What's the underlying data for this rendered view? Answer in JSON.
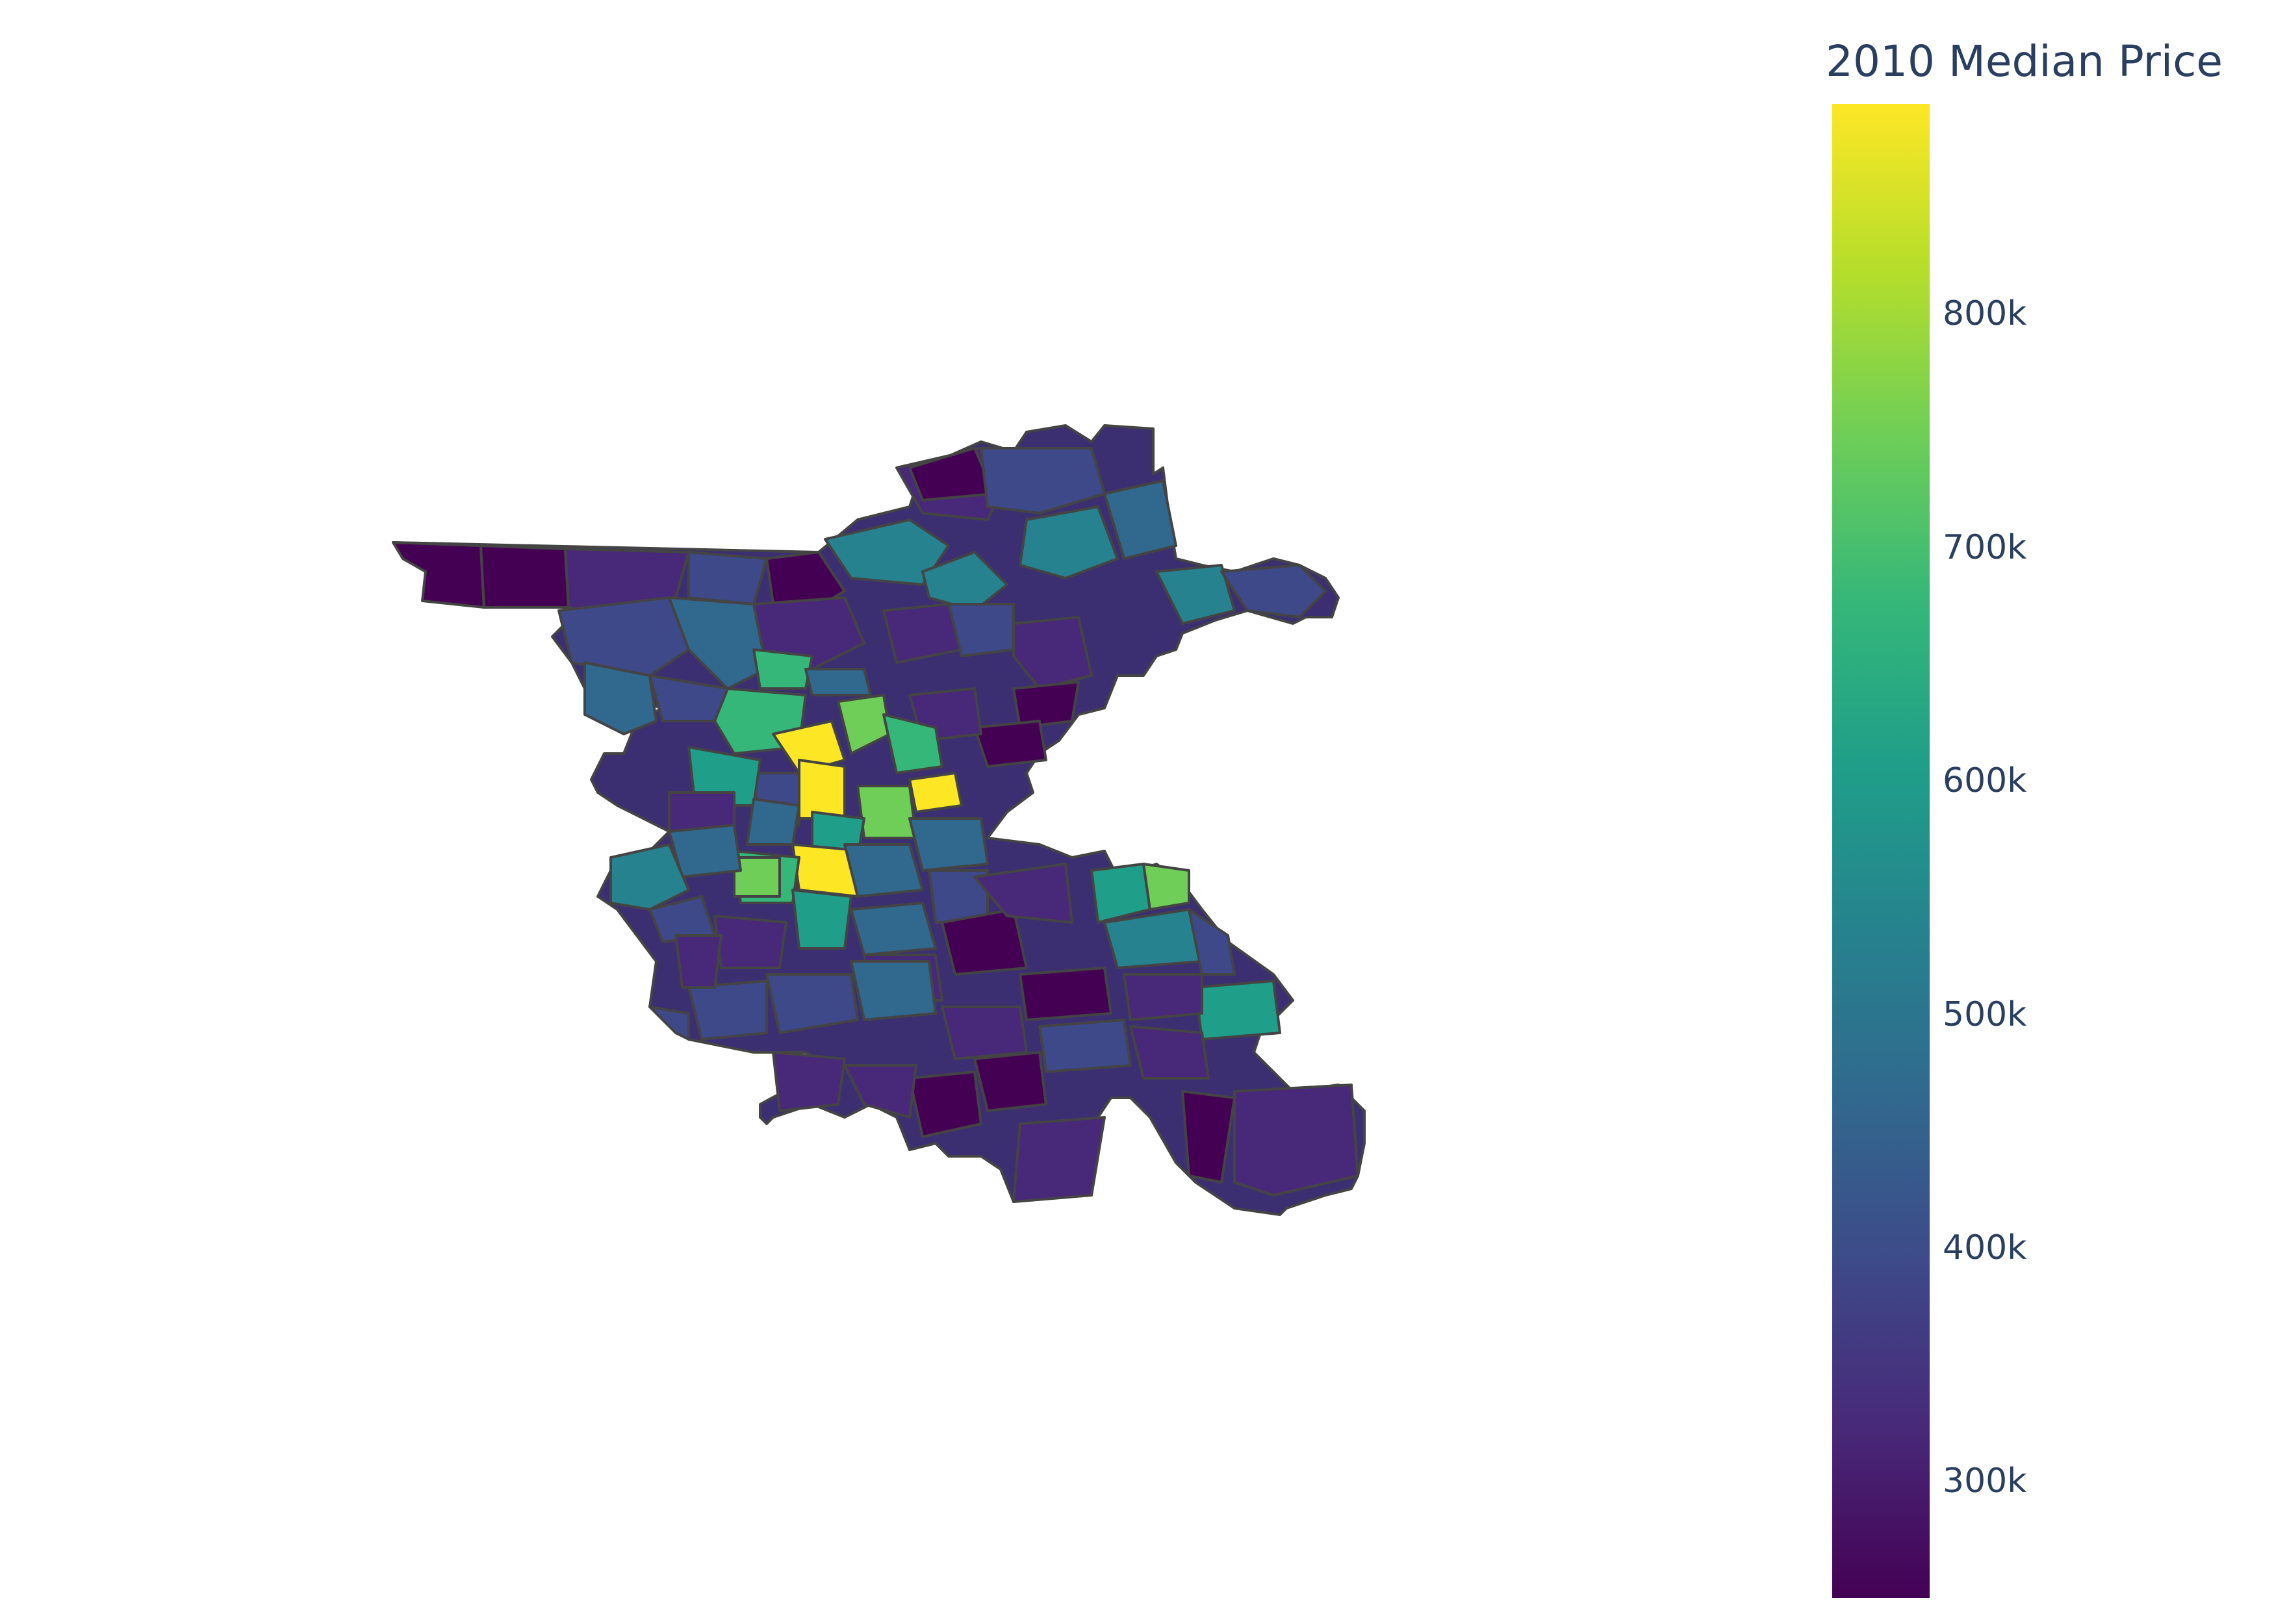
{
  "colorbar": {
    "title": "2010 Median Price",
    "min": 250000,
    "max": 890000,
    "colorscale": [
      "#440154",
      "#482878",
      "#3e4989",
      "#31688e",
      "#26828e",
      "#1f9e89",
      "#35b779",
      "#6ece58",
      "#b5de2b",
      "#fde725"
    ],
    "ticks": [
      {
        "value": 300000,
        "label": "300k"
      },
      {
        "value": 400000,
        "label": "400k"
      },
      {
        "value": 500000,
        "label": "500k"
      },
      {
        "value": 600000,
        "label": "600k"
      },
      {
        "value": 700000,
        "label": "700k"
      },
      {
        "value": 800000,
        "label": "800k"
      }
    ]
  },
  "map": {
    "border_color": "#444444"
  }
}
